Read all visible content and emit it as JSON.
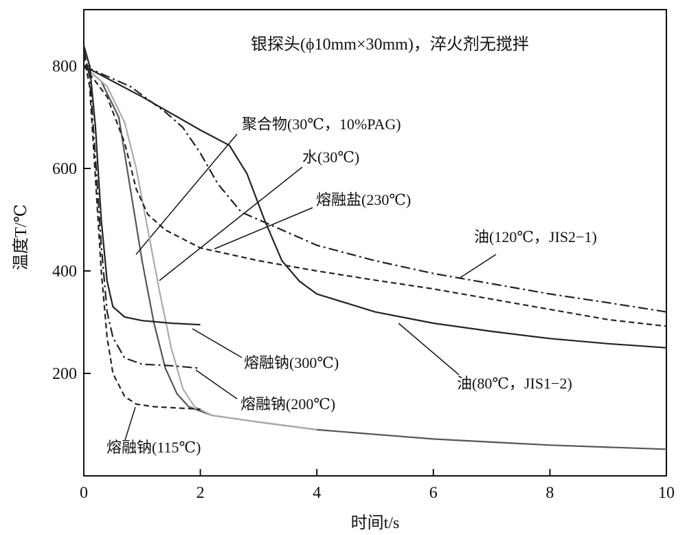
{
  "chart_data": {
    "type": "line",
    "title": "银探头(ϕ10mm×30mm)，淬火剂无搅拌",
    "xlabel": "时间t/s",
    "ylabel": "温度T/℃",
    "xlim": [
      0,
      10
    ],
    "ylim": [
      0,
      910
    ],
    "xticks": [
      0,
      2,
      4,
      6,
      8,
      10
    ],
    "yticks": [
      200,
      400,
      600,
      800
    ],
    "grid": false,
    "series": [
      {
        "name": "聚合物(30℃，10%PAG)",
        "color": "#555555",
        "dash": "solid",
        "x": [
          0,
          0.3,
          0.6,
          0.8,
          1.0,
          1.2,
          1.4,
          1.6,
          1.8,
          2.2,
          3,
          4,
          6,
          8,
          10
        ],
        "values": [
          800,
          770,
          700,
          560,
          420,
          300,
          210,
          160,
          135,
          118,
          105,
          90,
          72,
          60,
          52
        ]
      },
      {
        "name": "水(30℃)",
        "color": "#aaaaaa",
        "dash": "solid",
        "x": [
          0,
          0.4,
          0.7,
          0.9,
          1.1,
          1.3,
          1.5,
          1.7,
          1.9,
          2.2,
          3,
          4
        ],
        "values": [
          800,
          760,
          690,
          600,
          480,
          360,
          250,
          170,
          135,
          118,
          105,
          90
        ]
      },
      {
        "name": "熔融盐(230℃)",
        "color": "#222222",
        "dash": "dashed",
        "x": [
          0,
          0.4,
          0.7,
          0.9,
          1.1,
          1.4,
          2,
          3,
          4,
          5,
          6,
          7,
          8,
          9,
          10
        ],
        "values": [
          800,
          740,
          650,
          560,
          510,
          480,
          445,
          420,
          400,
          382,
          365,
          345,
          325,
          305,
          292
        ]
      },
      {
        "name": "油(120℃，JIS2−1)",
        "color": "#222222",
        "dash": "dashdot",
        "x": [
          0,
          0.8,
          1.4,
          1.7,
          2.0,
          2.3,
          2.7,
          3.2,
          4,
          5,
          6,
          7,
          8,
          9,
          10
        ],
        "values": [
          800,
          760,
          710,
          680,
          630,
          570,
          515,
          490,
          450,
          420,
          395,
          375,
          355,
          338,
          320
        ]
      },
      {
        "name": "油(80℃，JIS1−2)",
        "color": "#222222",
        "dash": "solid",
        "x": [
          0,
          1,
          2,
          2.5,
          2.8,
          3.1,
          3.4,
          3.7,
          4,
          5,
          6,
          7,
          8,
          9,
          10
        ],
        "values": [
          800,
          740,
          675,
          645,
          590,
          500,
          420,
          380,
          355,
          320,
          298,
          282,
          268,
          258,
          250
        ]
      },
      {
        "name": "熔融钠(300℃)",
        "color": "#222222",
        "dash": "solid",
        "x": [
          0,
          0.1,
          0.2,
          0.3,
          0.4,
          0.5,
          0.7,
          1.0,
          1.5,
          2.0
        ],
        "values": [
          840,
          800,
          680,
          500,
          380,
          330,
          310,
          303,
          298,
          295
        ]
      },
      {
        "name": "熔融钠(200℃)",
        "color": "#222222",
        "dash": "dashdot",
        "x": [
          0,
          0.1,
          0.2,
          0.3,
          0.4,
          0.5,
          0.7,
          1.0,
          1.5,
          2.0
        ],
        "values": [
          830,
          780,
          620,
          450,
          320,
          270,
          230,
          218,
          215,
          210
        ]
      },
      {
        "name": "熔融钠(115℃)",
        "color": "#222222",
        "dash": "dashed",
        "x": [
          0,
          0.1,
          0.2,
          0.3,
          0.4,
          0.5,
          0.7,
          0.9,
          1.2,
          2.0
        ],
        "values": [
          820,
          760,
          580,
          400,
          270,
          200,
          155,
          140,
          135,
          130
        ]
      }
    ]
  }
}
